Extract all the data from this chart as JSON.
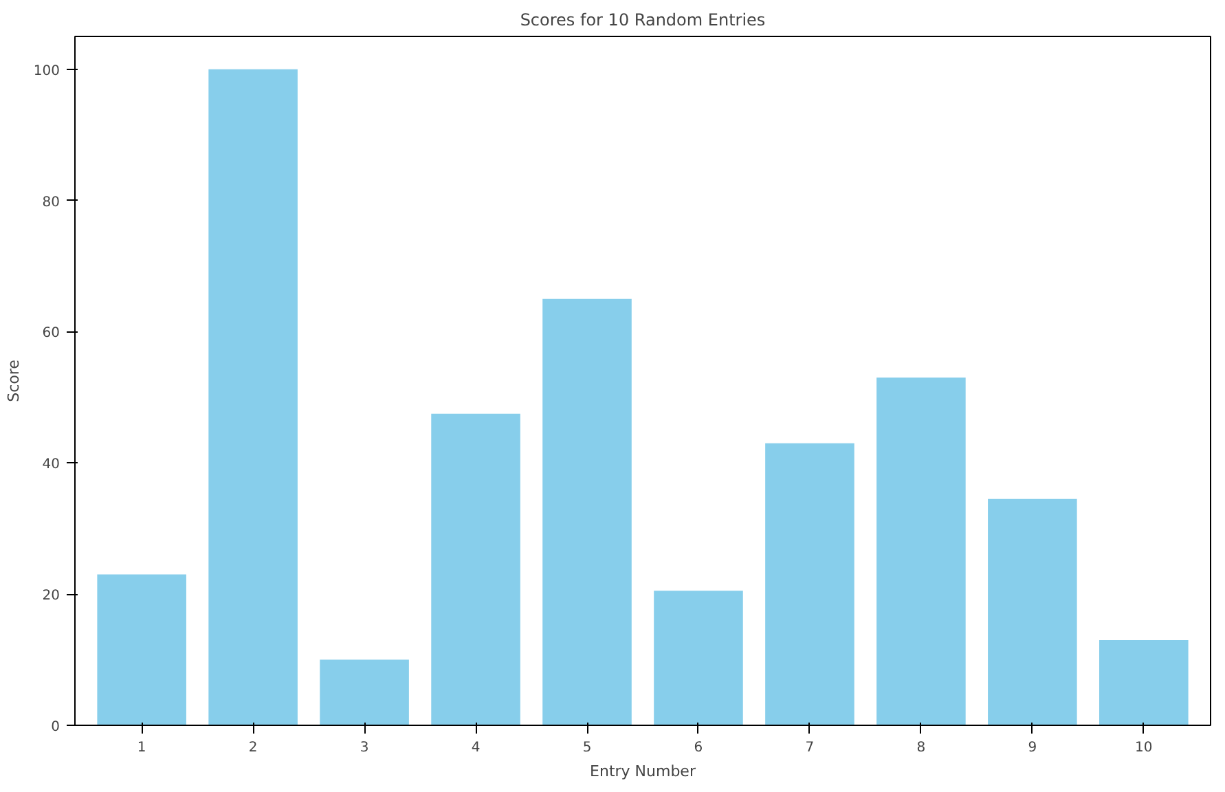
{
  "chart_data": {
    "type": "bar",
    "title": "Scores for 10 Random Entries",
    "xlabel": "Entry Number",
    "ylabel": "Score",
    "categories": [
      "1",
      "2",
      "3",
      "4",
      "5",
      "6",
      "7",
      "8",
      "9",
      "10"
    ],
    "values": [
      23,
      100,
      10,
      47.5,
      65,
      20.5,
      43,
      53,
      34.5,
      13
    ],
    "color": "#87ceeb",
    "ylim": [
      0,
      105
    ],
    "yticks": [
      0,
      20,
      40,
      60,
      80,
      100
    ],
    "grid": false
  }
}
